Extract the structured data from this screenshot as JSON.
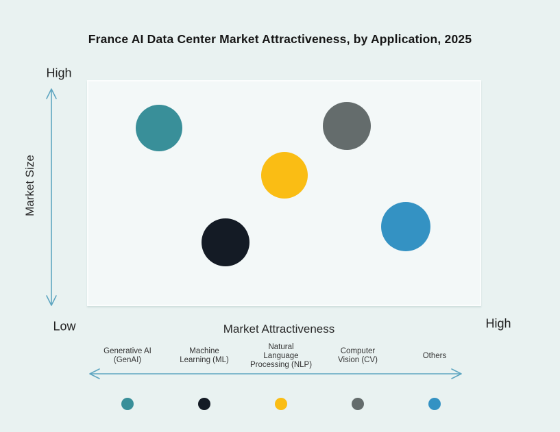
{
  "title": "France AI Data Center Market Attractiveness,  by Application, 2025",
  "axes": {
    "y_label": "Market Size",
    "y_high": "High",
    "y_low": "Low",
    "x_label": "Market Attractiveness",
    "x_high": "High"
  },
  "colors": {
    "background": "#e9f2f1",
    "plot_background": "#f3f8f8",
    "plot_border": "#fbfdfd",
    "arrow": "#5fa6c1",
    "title_text": "#151515",
    "legend_text": "#333333"
  },
  "chart_data": {
    "type": "scatter",
    "title": "France AI Data Center Market Attractiveness, by Application, 2025",
    "xlabel": "Market Attractiveness",
    "ylabel": "Market Size",
    "x_axis_range": [
      "Low",
      "High"
    ],
    "y_axis_range": [
      "Low",
      "High"
    ],
    "grid": false,
    "legend_position": "bottom",
    "points": [
      {
        "label": "Generative AI (GenAI)",
        "color": "#398f99",
        "x": 0.18,
        "y": 0.79,
        "r": 34
      },
      {
        "label": "Machine Learning (ML)",
        "color": "#141b25",
        "x": 0.35,
        "y": 0.28,
        "r": 35
      },
      {
        "label": "Natural Language Processing (NLP)",
        "color": "#fabd14",
        "x": 0.5,
        "y": 0.58,
        "r": 34
      },
      {
        "label": "Computer Vision (CV)",
        "color": "#646c6c",
        "x": 0.66,
        "y": 0.8,
        "r": 35
      },
      {
        "label": "Others",
        "color": "#3492c3",
        "x": 0.81,
        "y": 0.35,
        "r": 36
      }
    ]
  },
  "legend": {
    "items": [
      {
        "lines": [
          "Generative AI",
          "(GenAI)"
        ],
        "color": "#398f99"
      },
      {
        "lines": [
          "Machine",
          "Learning (ML)"
        ],
        "color": "#141b25"
      },
      {
        "lines": [
          "Natural",
          "Language",
          "Processing (NLP)"
        ],
        "color": "#fabd14"
      },
      {
        "lines": [
          "Computer",
          "Vision (CV)"
        ],
        "color": "#646c6c"
      },
      {
        "lines": [
          "Others"
        ],
        "color": "#3492c3"
      }
    ]
  }
}
